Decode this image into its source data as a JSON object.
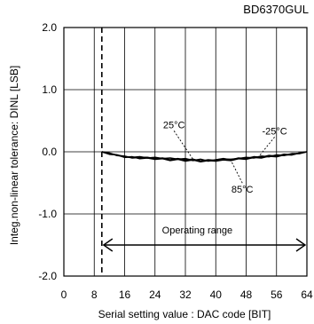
{
  "chart_data": {
    "type": "line",
    "title": "BD6370GUL",
    "xlabel": "Serial setting value : DAC code [BIT]",
    "ylabel": "Integ.non-linear tolerance: DINL [LSB]",
    "xlim": [
      0,
      64
    ],
    "ylim": [
      -2.0,
      2.0
    ],
    "x_ticks": [
      0,
      8,
      16,
      24,
      32,
      40,
      48,
      56,
      64
    ],
    "y_ticks": [
      2.0,
      1.0,
      0.0,
      -1.0,
      -2.0
    ],
    "y_tick_labels": [
      "2.0",
      "1.0",
      "0.0",
      "-1.0",
      "-2.0"
    ],
    "x_tick_labels": [
      "0",
      "8",
      "16",
      "24",
      "32",
      "40",
      "48",
      "56",
      "64"
    ],
    "grid": true,
    "dashed_marker_x": 10,
    "operating_range": {
      "label": "Operating range",
      "from": 10,
      "to": 64,
      "y": -1.5
    },
    "series": [
      {
        "name": "25°C",
        "x": [
          10,
          12,
          14,
          16,
          18,
          20,
          22,
          24,
          26,
          28,
          30,
          32,
          34,
          36,
          38,
          40,
          42,
          44,
          46,
          48,
          50,
          52,
          54,
          56,
          58,
          60,
          62,
          64
        ],
        "y": [
          0.0,
          -0.03,
          -0.05,
          -0.08,
          -0.09,
          -0.08,
          -0.1,
          -0.09,
          -0.11,
          -0.1,
          -0.12,
          -0.11,
          -0.14,
          -0.12,
          -0.15,
          -0.13,
          -0.11,
          -0.13,
          -0.1,
          -0.11,
          -0.08,
          -0.09,
          -0.06,
          -0.07,
          -0.04,
          -0.05,
          -0.02,
          0.0
        ]
      },
      {
        "name": "-25°C",
        "x": [
          10,
          12,
          14,
          16,
          18,
          20,
          22,
          24,
          26,
          28,
          30,
          32,
          34,
          36,
          38,
          40,
          42,
          44,
          46,
          48,
          50,
          52,
          54,
          56,
          58,
          60,
          62,
          64
        ],
        "y": [
          0.0,
          -0.02,
          -0.06,
          -0.07,
          -0.1,
          -0.09,
          -0.09,
          -0.11,
          -0.1,
          -0.13,
          -0.11,
          -0.13,
          -0.12,
          -0.15,
          -0.13,
          -0.14,
          -0.12,
          -0.12,
          -0.11,
          -0.09,
          -0.1,
          -0.07,
          -0.08,
          -0.05,
          -0.06,
          -0.03,
          -0.03,
          0.0
        ]
      },
      {
        "name": "85°C",
        "x": [
          10,
          12,
          14,
          16,
          18,
          20,
          22,
          24,
          26,
          28,
          30,
          32,
          34,
          36,
          38,
          40,
          42,
          44,
          46,
          48,
          50,
          52,
          54,
          56,
          58,
          60,
          62,
          64
        ],
        "y": [
          0.0,
          -0.04,
          -0.05,
          -0.09,
          -0.08,
          -0.11,
          -0.1,
          -0.12,
          -0.11,
          -0.14,
          -0.12,
          -0.15,
          -0.13,
          -0.16,
          -0.14,
          -0.15,
          -0.13,
          -0.14,
          -0.11,
          -0.12,
          -0.09,
          -0.1,
          -0.07,
          -0.08,
          -0.05,
          -0.05,
          -0.02,
          0.0
        ]
      }
    ],
    "annotations": [
      {
        "text": "25°C",
        "tx": 29,
        "ty": 0.38,
        "px": 34,
        "py": -0.12
      },
      {
        "text": "-25°C",
        "tx": 55.5,
        "ty": 0.28,
        "px": 51,
        "py": -0.1
      },
      {
        "text": "85°C",
        "tx": 47,
        "ty": -0.66,
        "px": 44,
        "py": -0.14
      }
    ],
    "colors": {
      "line": "#000000",
      "grid": "#000000",
      "background": "#ffffff"
    }
  }
}
